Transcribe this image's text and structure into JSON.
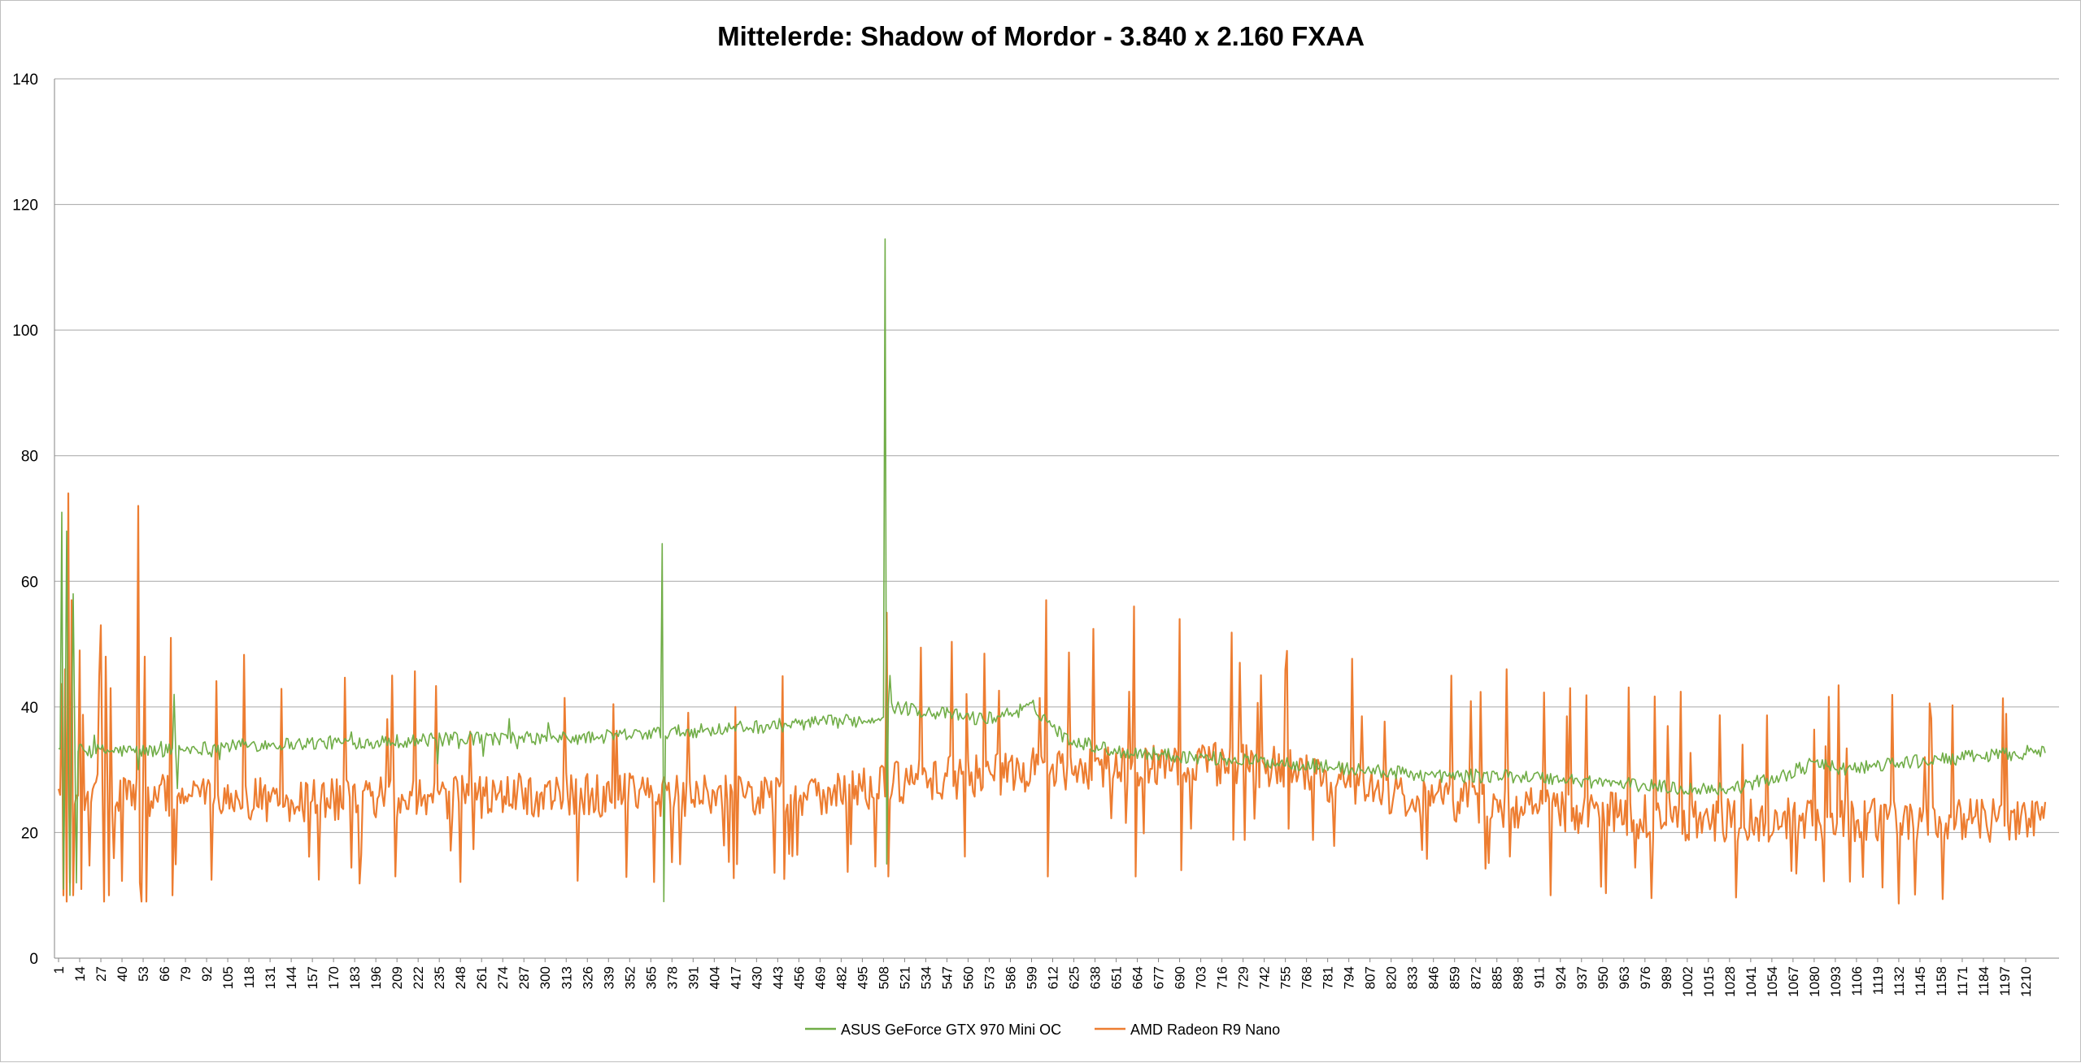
{
  "chart_data": {
    "type": "line",
    "title": "Mittelerde: Shadow of Mordor - 3.840 x 2.160 FXAA",
    "xlabel": "",
    "ylabel": "",
    "ylim": [
      0,
      140
    ],
    "yticks": [
      0,
      20,
      40,
      60,
      80,
      100,
      120,
      140
    ],
    "x_range": [
      1,
      1222
    ],
    "xticks": [
      1,
      14,
      27,
      40,
      53,
      66,
      79,
      92,
      105,
      118,
      131,
      144,
      157,
      170,
      183,
      196,
      209,
      222,
      235,
      248,
      261,
      274,
      287,
      300,
      313,
      326,
      339,
      352,
      365,
      378,
      391,
      404,
      417,
      430,
      443,
      456,
      469,
      482,
      495,
      508,
      521,
      534,
      547,
      560,
      573,
      586,
      599,
      612,
      625,
      638,
      651,
      664,
      677,
      690,
      703,
      716,
      729,
      742,
      755,
      768,
      781,
      794,
      807,
      820,
      833,
      846,
      859,
      872,
      885,
      898,
      911,
      924,
      937,
      950,
      963,
      976,
      989,
      1002,
      1015,
      1028,
      1041,
      1054,
      1067,
      1080,
      1093,
      1106,
      1119,
      1132,
      1145,
      1158,
      1171,
      1184,
      1197,
      1210
    ],
    "grid": "horizontal",
    "legend_position": "bottom",
    "series": [
      {
        "name": "ASUS GeForce GTX 970 Mini OC",
        "color": "#70ad47",
        "profile": [
          [
            1,
            33
          ],
          [
            60,
            33
          ],
          [
            120,
            34
          ],
          [
            200,
            34.5
          ],
          [
            260,
            35
          ],
          [
            320,
            35
          ],
          [
            380,
            36
          ],
          [
            440,
            37
          ],
          [
            500,
            38
          ],
          [
            515,
            40
          ],
          [
            570,
            38
          ],
          [
            600,
            40
          ],
          [
            620,
            35
          ],
          [
            650,
            33
          ],
          [
            700,
            32
          ],
          [
            760,
            31
          ],
          [
            800,
            30
          ],
          [
            850,
            29
          ],
          [
            900,
            29
          ],
          [
            950,
            28
          ],
          [
            1000,
            27
          ],
          [
            1030,
            27
          ],
          [
            1060,
            29
          ],
          [
            1080,
            31
          ],
          [
            1100,
            30
          ],
          [
            1130,
            31
          ],
          [
            1222,
            33
          ]
        ],
        "spikes": [
          [
            3,
            71
          ],
          [
            4,
            11
          ],
          [
            6,
            68
          ],
          [
            8,
            10
          ],
          [
            10,
            58
          ],
          [
            12,
            12
          ],
          [
            50,
            30
          ],
          [
            72,
            42
          ],
          [
            74,
            27
          ],
          [
            372,
            66
          ],
          [
            373,
            9
          ],
          [
            509,
            114.5
          ],
          [
            510,
            15
          ],
          [
            512,
            45
          ]
        ]
      },
      {
        "name": "AMD Radeon R9 Nano",
        "color": "#ed7d31",
        "profile": [
          [
            1,
            26
          ],
          [
            60,
            26
          ],
          [
            150,
            25
          ],
          [
            300,
            26
          ],
          [
            450,
            26
          ],
          [
            500,
            27
          ],
          [
            520,
            28
          ],
          [
            600,
            30
          ],
          [
            700,
            31
          ],
          [
            760,
            30
          ],
          [
            800,
            27
          ],
          [
            900,
            24
          ],
          [
            1000,
            22
          ],
          [
            1100,
            22
          ],
          [
            1222,
            22
          ]
        ],
        "spikes": [
          [
            2,
            26
          ],
          [
            4,
            10
          ],
          [
            5,
            46
          ],
          [
            6,
            9
          ],
          [
            7,
            74
          ],
          [
            8,
            12
          ],
          [
            9,
            57
          ],
          [
            10,
            10
          ],
          [
            14,
            49
          ],
          [
            15,
            11
          ],
          [
            27,
            53
          ],
          [
            29,
            9
          ],
          [
            30,
            48
          ],
          [
            32,
            10
          ],
          [
            33,
            43
          ],
          [
            50,
            72
          ],
          [
            51,
            12
          ],
          [
            52,
            9
          ],
          [
            54,
            48
          ],
          [
            55,
            9
          ],
          [
            70,
            51
          ],
          [
            71,
            10
          ],
          [
            510,
            55
          ],
          [
            511,
            13
          ],
          [
            608,
            57
          ],
          [
            609,
            13
          ],
          [
            662,
            56
          ],
          [
            663,
            13
          ],
          [
            690,
            54
          ],
          [
            691,
            14
          ],
          [
            918,
            10
          ],
          [
            930,
            43
          ]
        ]
      }
    ]
  }
}
